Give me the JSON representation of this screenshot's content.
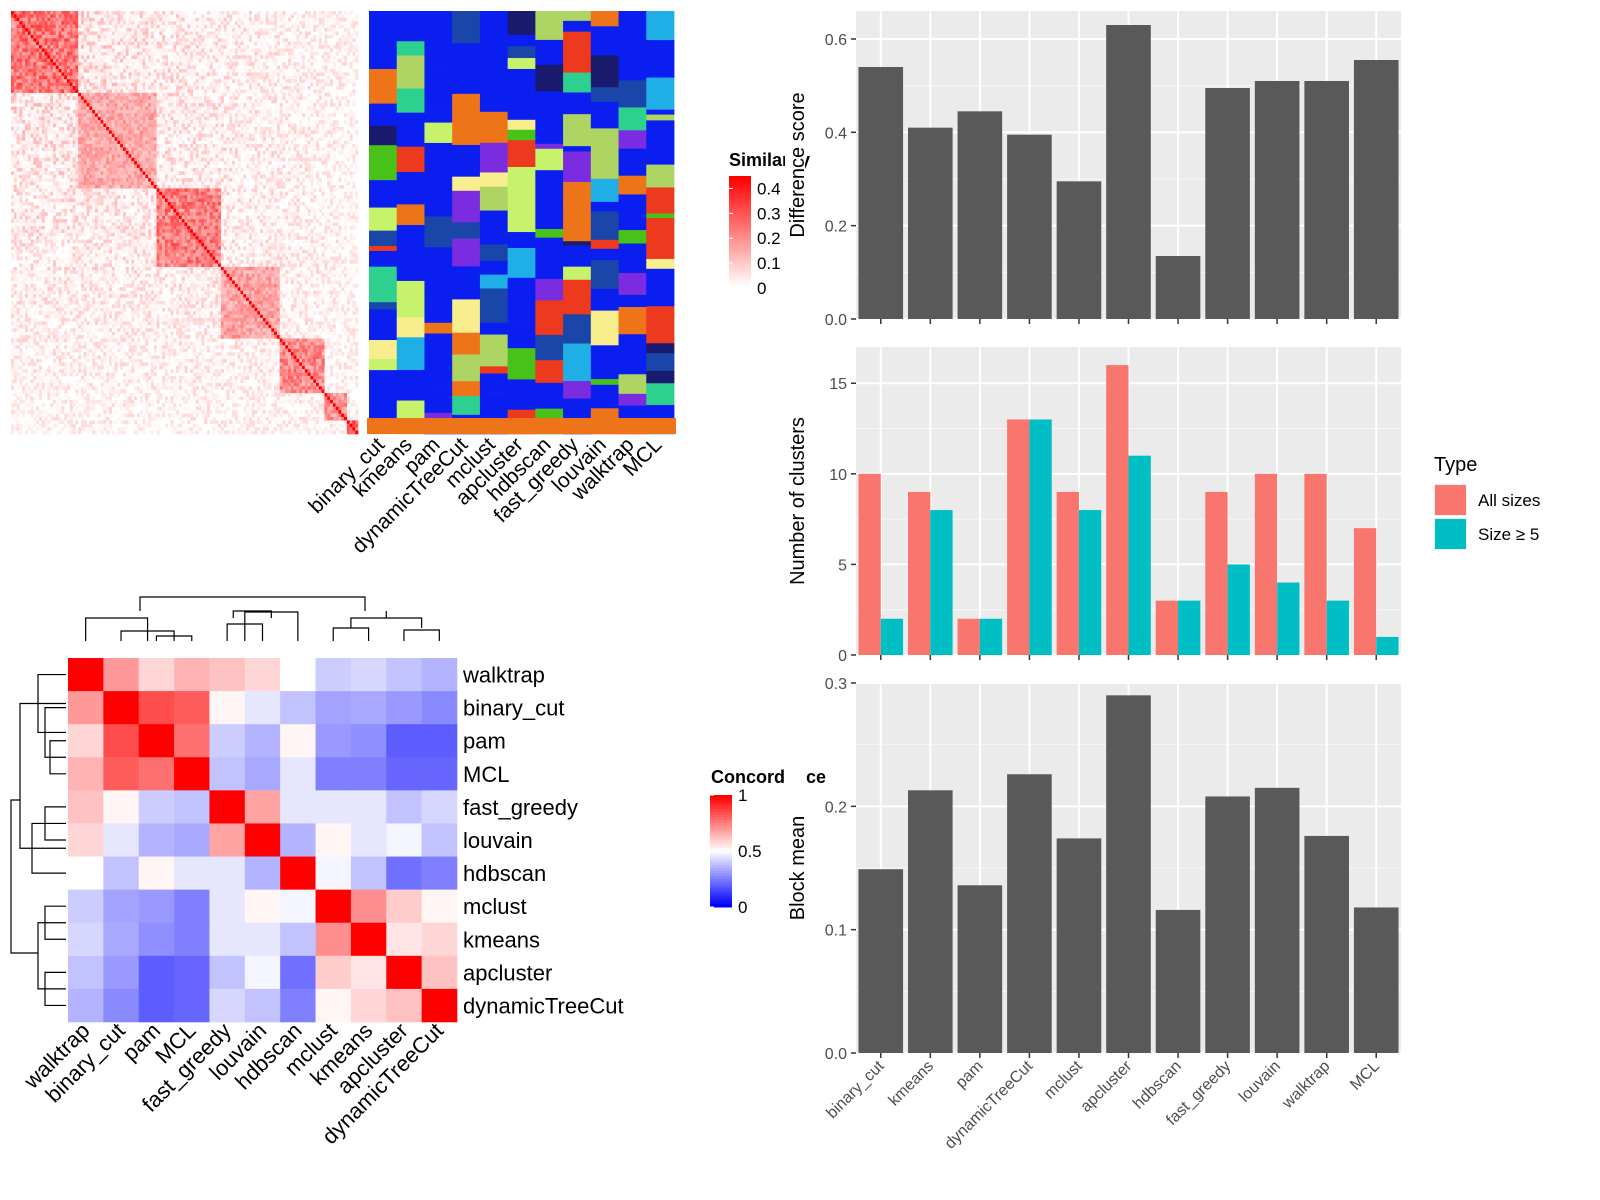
{
  "chart_data": [
    {
      "type": "heatmap",
      "name": "similarity-heatmap",
      "legend": {
        "title": "Similarity",
        "ticks": [
          "0.4",
          "0.3",
          "0.2",
          "0.1",
          "0"
        ],
        "range": [
          0,
          0.45
        ]
      },
      "colors": {
        "low": "#ffffff",
        "high": "#ff0000"
      },
      "blocks": [
        {
          "from": 0,
          "to": 24,
          "strength": 0.45
        },
        {
          "from": 24,
          "to": 52,
          "strength": 0.28
        },
        {
          "from": 52,
          "to": 75,
          "strength": 0.42
        },
        {
          "from": 75,
          "to": 96,
          "strength": 0.3
        },
        {
          "from": 96,
          "to": 112,
          "strength": 0.38
        },
        {
          "from": 112,
          "to": 120,
          "strength": 0.35
        },
        {
          "from": 120,
          "to": 124,
          "strength": 0.5
        }
      ],
      "cluster_methods": [
        "binary_cut",
        "kmeans",
        "pam",
        "dynamicTreeCut",
        "mclust",
        "apcluster",
        "hdbscan",
        "fast_greedy",
        "louvain",
        "walktrap",
        "MCL"
      ]
    },
    {
      "type": "heatmap",
      "name": "concordance-heatmap",
      "legend": {
        "title": "Concordance",
        "ticks": [
          "1",
          "0.5",
          "0"
        ],
        "range": [
          0,
          1
        ]
      },
      "colors": {
        "low": "#0000ff",
        "mid": "#ffffff",
        "high": "#ff0000"
      },
      "rows": [
        "walktrap",
        "binary_cut",
        "pam",
        "MCL",
        "fast_greedy",
        "louvain",
        "hdbscan",
        "mclust",
        "kmeans",
        "apcluster",
        "dynamicTreeCut"
      ],
      "columns": [
        "walktrap",
        "binary_cut",
        "pam",
        "MCL",
        "fast_greedy",
        "louvain",
        "hdbscan",
        "mclust",
        "kmeans",
        "apcluster",
        "dynamicTreeCut"
      ],
      "values": [
        [
          1.0,
          0.7,
          0.58,
          0.65,
          0.62,
          0.58,
          0.5,
          0.4,
          0.42,
          0.38,
          0.35
        ],
        [
          0.7,
          1.0,
          0.85,
          0.82,
          0.52,
          0.45,
          0.38,
          0.32,
          0.33,
          0.3,
          0.27
        ],
        [
          0.58,
          0.85,
          1.0,
          0.78,
          0.4,
          0.35,
          0.52,
          0.3,
          0.28,
          0.18,
          0.18
        ],
        [
          0.65,
          0.82,
          0.78,
          1.0,
          0.38,
          0.33,
          0.45,
          0.25,
          0.25,
          0.2,
          0.2
        ],
        [
          0.62,
          0.52,
          0.4,
          0.38,
          1.0,
          0.68,
          0.45,
          0.45,
          0.45,
          0.38,
          0.42
        ],
        [
          0.58,
          0.45,
          0.35,
          0.33,
          0.68,
          1.0,
          0.35,
          0.52,
          0.45,
          0.48,
          0.38
        ],
        [
          0.5,
          0.38,
          0.52,
          0.45,
          0.45,
          0.35,
          1.0,
          0.48,
          0.38,
          0.22,
          0.25
        ],
        [
          0.4,
          0.32,
          0.3,
          0.25,
          0.45,
          0.52,
          0.48,
          1.0,
          0.72,
          0.6,
          0.52
        ],
        [
          0.42,
          0.33,
          0.28,
          0.25,
          0.45,
          0.45,
          0.38,
          0.72,
          1.0,
          0.55,
          0.58
        ],
        [
          0.38,
          0.3,
          0.18,
          0.2,
          0.38,
          0.48,
          0.22,
          0.6,
          0.55,
          1.0,
          0.62
        ],
        [
          0.35,
          0.27,
          0.18,
          0.2,
          0.42,
          0.38,
          0.25,
          0.52,
          0.58,
          0.62,
          1.0
        ]
      ]
    },
    {
      "type": "bar",
      "name": "difference-score",
      "categories": [
        "binary_cut",
        "kmeans",
        "pam",
        "dynamicTreeCut",
        "mclust",
        "apcluster",
        "hdbscan",
        "fast_greedy",
        "louvain",
        "walktrap",
        "MCL"
      ],
      "values": [
        0.54,
        0.41,
        0.445,
        0.395,
        0.295,
        0.63,
        0.135,
        0.495,
        0.51,
        0.51,
        0.555
      ],
      "ylabel": "Difference score",
      "ylim": [
        0,
        0.66
      ],
      "yticks": [
        0,
        0.2,
        0.4,
        0.6
      ],
      "yticklabels": [
        "0.0",
        "0.2",
        "0.4",
        "0.6"
      ],
      "bar_color": "#595959",
      "grid": true
    },
    {
      "type": "bar",
      "name": "number-of-clusters",
      "categories": [
        "binary_cut",
        "kmeans",
        "pam",
        "dynamicTreeCut",
        "mclust",
        "apcluster",
        "hdbscan",
        "fast_greedy",
        "louvain",
        "walktrap",
        "MCL"
      ],
      "series": [
        {
          "name": "All sizes",
          "color": "#f8766d",
          "values": [
            10,
            9,
            2,
            13,
            9,
            16,
            3,
            9,
            10,
            10,
            7
          ]
        },
        {
          "name": "Size ≥ 5",
          "color": "#00bfc4",
          "values": [
            2,
            8,
            2,
            13,
            8,
            11,
            3,
            5,
            4,
            3,
            1
          ]
        }
      ],
      "ylabel": "Number of clusters",
      "ylim": [
        0,
        17
      ],
      "yticks": [
        0,
        5,
        10,
        15
      ],
      "yticklabels": [
        "0",
        "5",
        "10",
        "15"
      ],
      "legend_title": "Type",
      "legend_position": "right",
      "grid": true
    },
    {
      "type": "bar",
      "name": "block-mean",
      "categories": [
        "binary_cut",
        "kmeans",
        "pam",
        "dynamicTreeCut",
        "mclust",
        "apcluster",
        "hdbscan",
        "fast_greedy",
        "louvain",
        "walktrap",
        "MCL"
      ],
      "values": [
        0.149,
        0.213,
        0.136,
        0.226,
        0.174,
        0.29,
        0.116,
        0.208,
        0.215,
        0.176,
        0.118
      ],
      "ylabel": "Block mean",
      "ylim": [
        0,
        0.3
      ],
      "yticks": [
        0,
        0.1,
        0.2,
        0.3
      ],
      "yticklabels": [
        "0.0",
        "0.1",
        "0.2",
        "0.3"
      ],
      "bar_color": "#595959",
      "grid": true
    }
  ]
}
